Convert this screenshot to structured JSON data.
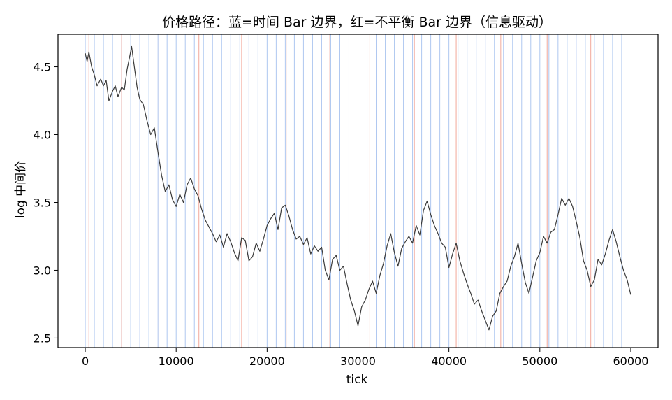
{
  "chart_data": {
    "type": "line",
    "title": "价格路径：蓝=时间 Bar 边界，红=不平衡 Bar 边界（信息驱动）",
    "xlabel": "tick",
    "ylabel": "log 中间价",
    "xlim": [
      -3000,
      63000
    ],
    "ylim": [
      2.43,
      4.74
    ],
    "xticks": [
      0,
      10000,
      20000,
      30000,
      40000,
      50000,
      60000
    ],
    "xtick_labels": [
      "0",
      "10000",
      "20000",
      "30000",
      "40000",
      "50000",
      "60000"
    ],
    "yticks": [
      2.5,
      3.0,
      3.5,
      4.0,
      4.5
    ],
    "ytick_labels": [
      "2.5",
      "3.0",
      "3.5",
      "4.0",
      "4.5"
    ],
    "grid": false,
    "legend": "none",
    "colors": {
      "line": "#3a3a3a",
      "time_bar": "#aec7f0",
      "imbalance_bar": "#f2a89a",
      "axes": "#000000"
    },
    "time_bar_boundaries": [
      0,
      1000,
      2000,
      3000,
      4000,
      5000,
      6000,
      7000,
      8000,
      9000,
      10000,
      11000,
      12000,
      13000,
      14000,
      15000,
      16000,
      17000,
      18000,
      19000,
      20000,
      21000,
      22000,
      23000,
      24000,
      25000,
      26000,
      27000,
      28000,
      29000,
      30000,
      31000,
      32000,
      33000,
      34000,
      35000,
      36000,
      37000,
      38000,
      39000,
      40000,
      41000,
      42000,
      43000,
      44000,
      45000,
      46000,
      47000,
      48000,
      49000,
      50000,
      51000,
      52000,
      53000,
      54000,
      55000,
      56000,
      57000,
      58000,
      59000
    ],
    "imbalance_bar_boundaries": [
      400,
      4000,
      8100,
      12500,
      17200,
      22100,
      26900,
      31300,
      36200,
      40800,
      45700,
      50800,
      55600
    ],
    "series": [
      {
        "x": [
          0,
          200,
          400,
          700,
          1000,
          1300,
          1700,
          2000,
          2300,
          2600,
          3000,
          3300,
          3600,
          4000,
          4300,
          4600,
          4900,
          5100,
          5400,
          5700,
          6000,
          6400,
          6800,
          7200,
          7600,
          8000,
          8400,
          8800,
          9200,
          9600,
          10000,
          10400,
          10800,
          11200,
          11600,
          12000,
          12400,
          12800,
          13200,
          13600,
          14000,
          14400,
          14800,
          15200,
          15600,
          16000,
          16400,
          16800,
          17200,
          17600,
          18000,
          18400,
          18800,
          19200,
          19600,
          20000,
          20400,
          20800,
          21200,
          21600,
          22000,
          22400,
          22800,
          23200,
          23600,
          24000,
          24400,
          24800,
          25200,
          25600,
          26000,
          26400,
          26800,
          27200,
          27600,
          28000,
          28400,
          28800,
          29200,
          29600,
          30000,
          30400,
          30800,
          31200,
          31600,
          32000,
          32400,
          32800,
          33200,
          33600,
          34000,
          34400,
          34800,
          35200,
          35600,
          36000,
          36400,
          36800,
          37200,
          37600,
          38000,
          38400,
          38800,
          39200,
          39600,
          40000,
          40400,
          40800,
          41200,
          41600,
          42000,
          42400,
          42800,
          43200,
          43600,
          44000,
          44400,
          44800,
          45200,
          45600,
          46000,
          46400,
          46800,
          47200,
          47600,
          48000,
          48400,
          48800,
          49200,
          49600,
          50000,
          50400,
          50800,
          51200,
          51600,
          52000,
          52400,
          52800,
          53200,
          53600,
          54000,
          54400,
          54800,
          55200,
          55600,
          56000,
          56400,
          56800,
          57200,
          57600,
          58000,
          58400,
          58800,
          59200,
          59600,
          60000
        ],
        "y": [
          4.6,
          4.54,
          4.61,
          4.5,
          4.44,
          4.36,
          4.41,
          4.36,
          4.4,
          4.25,
          4.32,
          4.36,
          4.28,
          4.35,
          4.33,
          4.48,
          4.58,
          4.65,
          4.5,
          4.35,
          4.26,
          4.22,
          4.1,
          4.0,
          4.05,
          3.87,
          3.7,
          3.58,
          3.63,
          3.52,
          3.47,
          3.56,
          3.5,
          3.63,
          3.68,
          3.6,
          3.55,
          3.45,
          3.37,
          3.32,
          3.27,
          3.21,
          3.26,
          3.17,
          3.27,
          3.21,
          3.13,
          3.07,
          3.24,
          3.22,
          3.07,
          3.1,
          3.2,
          3.14,
          3.23,
          3.33,
          3.38,
          3.42,
          3.3,
          3.46,
          3.48,
          3.4,
          3.3,
          3.23,
          3.25,
          3.19,
          3.24,
          3.12,
          3.18,
          3.14,
          3.17,
          3.0,
          2.93,
          3.08,
          3.11,
          3.0,
          3.03,
          2.9,
          2.78,
          2.7,
          2.59,
          2.73,
          2.78,
          2.86,
          2.92,
          2.83,
          2.96,
          3.05,
          3.18,
          3.27,
          3.13,
          3.03,
          3.16,
          3.21,
          3.25,
          3.2,
          3.33,
          3.26,
          3.44,
          3.51,
          3.41,
          3.33,
          3.27,
          3.2,
          3.17,
          3.02,
          3.12,
          3.2,
          3.07,
          2.98,
          2.9,
          2.83,
          2.75,
          2.78,
          2.7,
          2.63,
          2.56,
          2.66,
          2.7,
          2.83,
          2.88,
          2.92,
          3.03,
          3.1,
          3.2,
          3.05,
          2.91,
          2.83,
          2.95,
          3.07,
          3.13,
          3.25,
          3.2,
          3.28,
          3.3,
          3.41,
          3.53,
          3.48,
          3.53,
          3.47,
          3.36,
          3.24,
          3.07,
          3.0,
          2.88,
          2.93,
          3.08,
          3.04,
          3.12,
          3.22,
          3.3,
          3.21,
          3.1,
          3.0,
          2.93,
          2.82
        ]
      }
    ]
  }
}
